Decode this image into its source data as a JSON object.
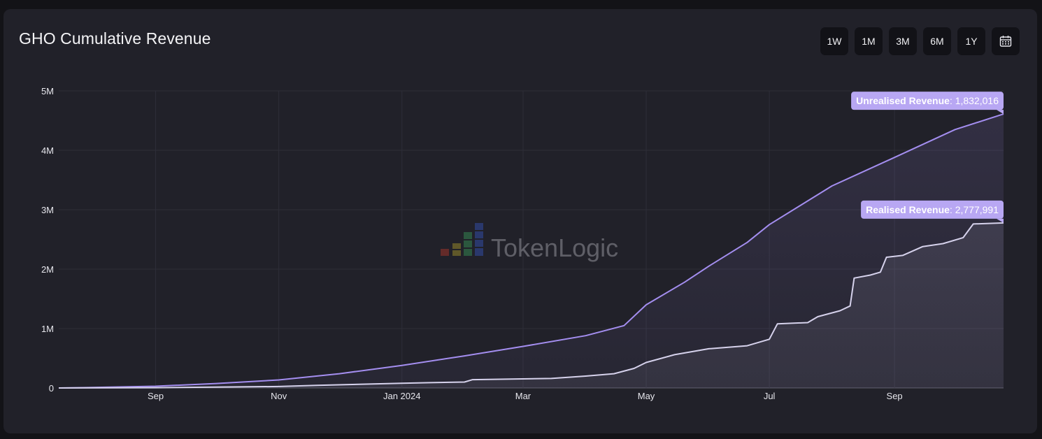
{
  "card": {
    "title": "GHO Cumulative Revenue",
    "range_buttons": [
      "1W",
      "1M",
      "3M",
      "6M",
      "1Y"
    ],
    "calendar_icon": "calendar-icon"
  },
  "watermark": {
    "text": "TokenLogic",
    "icon": "bar-chart-logo-icon"
  },
  "chart_data": {
    "type": "area",
    "title": "GHO Cumulative Revenue",
    "xlabel": "",
    "ylabel": "",
    "x_ticks": [
      "Sep",
      "Nov",
      "Jan 2024",
      "Mar",
      "May",
      "Jul",
      "Sep"
    ],
    "y_ticks": [
      "0",
      "1M",
      "2M",
      "3M",
      "4M",
      "5M"
    ],
    "ylim": [
      0,
      5000000
    ],
    "grid": true,
    "series": [
      {
        "name": "Unrealised Revenue",
        "label_value": "1,832,016",
        "color": "#a48ef0",
        "points": [
          [
            "2023-07-15",
            0
          ],
          [
            "2023-08-01",
            8000
          ],
          [
            "2023-09-01",
            30000
          ],
          [
            "2023-10-01",
            75000
          ],
          [
            "2023-11-01",
            135000
          ],
          [
            "2023-12-01",
            240000
          ],
          [
            "2024-01-01",
            380000
          ],
          [
            "2024-02-01",
            540000
          ],
          [
            "2024-03-01",
            700000
          ],
          [
            "2024-04-01",
            880000
          ],
          [
            "2024-04-20",
            1050000
          ],
          [
            "2024-05-01",
            1400000
          ],
          [
            "2024-05-20",
            1780000
          ],
          [
            "2024-06-01",
            2050000
          ],
          [
            "2024-06-20",
            2450000
          ],
          [
            "2024-07-01",
            2750000
          ],
          [
            "2024-08-01",
            3400000
          ],
          [
            "2024-09-01",
            3880000
          ],
          [
            "2024-10-01",
            4350000
          ],
          [
            "2024-10-25",
            4610000
          ]
        ]
      },
      {
        "name": "Realised Revenue",
        "label_value": "2,777,991",
        "color": "#d6d2ec",
        "points": [
          [
            "2023-07-15",
            0
          ],
          [
            "2023-09-01",
            5000
          ],
          [
            "2023-11-01",
            25000
          ],
          [
            "2023-11-20",
            45000
          ],
          [
            "2024-01-01",
            80000
          ],
          [
            "2024-01-15",
            90000
          ],
          [
            "2024-02-01",
            100000
          ],
          [
            "2024-02-05",
            140000
          ],
          [
            "2024-03-15",
            160000
          ],
          [
            "2024-04-01",
            200000
          ],
          [
            "2024-04-15",
            240000
          ],
          [
            "2024-04-25",
            330000
          ],
          [
            "2024-05-01",
            430000
          ],
          [
            "2024-05-15",
            560000
          ],
          [
            "2024-06-01",
            660000
          ],
          [
            "2024-06-20",
            710000
          ],
          [
            "2024-07-01",
            820000
          ],
          [
            "2024-07-05",
            1080000
          ],
          [
            "2024-07-20",
            1100000
          ],
          [
            "2024-07-25",
            1200000
          ],
          [
            "2024-08-05",
            1300000
          ],
          [
            "2024-08-10",
            1380000
          ],
          [
            "2024-08-12",
            1850000
          ],
          [
            "2024-08-20",
            1900000
          ],
          [
            "2024-08-25",
            1950000
          ],
          [
            "2024-08-28",
            2200000
          ],
          [
            "2024-09-05",
            2230000
          ],
          [
            "2024-09-15",
            2380000
          ],
          [
            "2024-09-25",
            2430000
          ],
          [
            "2024-10-05",
            2530000
          ],
          [
            "2024-10-10",
            2760000
          ],
          [
            "2024-10-25",
            2778000
          ]
        ]
      }
    ]
  }
}
